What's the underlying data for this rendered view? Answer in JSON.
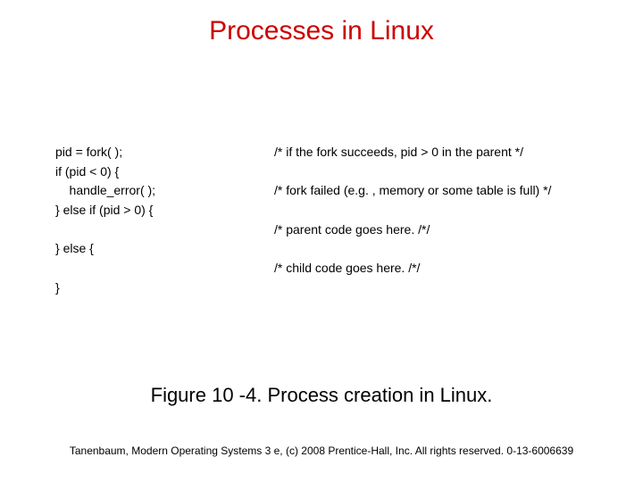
{
  "title": {
    "text": "Processes in Linux",
    "color": "#cc0000",
    "fontsize": 30
  },
  "code": {
    "font_family": "Arial, Helvetica, sans-serif",
    "fontsize": 14,
    "text_color": "#000000",
    "rows": [
      {
        "left": "pid = fork( );",
        "right": "/* if the fork succeeds, pid > 0 in the parent */"
      },
      {
        "left": "if (pid < 0) {",
        "right": ""
      },
      {
        "left": "    handle_error( );",
        "right": "/* fork failed (e.g. , memory or some table is full) */"
      },
      {
        "left": "} else if (pid > 0) {",
        "right": ""
      },
      {
        "left": "",
        "right": "/* parent code goes here. /*/"
      },
      {
        "left": "} else {",
        "right": ""
      },
      {
        "left": "",
        "right": "/* child code goes here. /*/"
      },
      {
        "left": "}",
        "right": ""
      }
    ]
  },
  "caption": {
    "text": "Figure 10 -4. Process creation in Linux.",
    "color": "#000000",
    "fontsize": 22
  },
  "footer": {
    "text": "Tanenbaum, Modern Operating Systems 3 e, (c) 2008 Prentice-Hall, Inc. All rights reserved. 0-13-6006639",
    "color": "#000000",
    "fontsize": 12
  },
  "background_color": "#ffffff"
}
